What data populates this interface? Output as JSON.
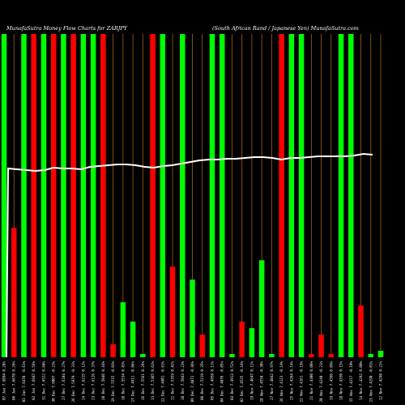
{
  "chart_data": {
    "type": "bar",
    "title_left": "MunafaSutra  Money Flow  Charts for ZARJPY",
    "title_right": "(South African Rand / Japanese Yen) MunafaSutra.com",
    "grid": true,
    "colors": {
      "background": "#000000",
      "up": "#00ff00",
      "down": "#ff0000",
      "grid": "#a0611a",
      "line": "#ffffff"
    },
    "ylim": [
      0,
      100
    ],
    "categories": [
      "07 Jan 7.6894 0.28%",
      "06 Jan 7.6678 0.26%",
      "03 Jan 7.6478 -0.61%",
      "02 Jan 7.6947 0.56%",
      "31 Dec 7.6522 0.68%",
      "30 Dec 7.6007 -0.23%",
      "27 Dec 7.6184 0.27%",
      "26 Dec 7.5979 -0.31%",
      "24 Dec 7.6215 0.11%",
      "23 Dec 7.6126 0.37%",
      "20 Dec 7.5846 0.44%",
      "19 Dec 7.5515 -0.03%",
      "18 Dec 7.5534 0.83%",
      "17 Dec 7.4911 -0.86%",
      "16 Dec 7.5561 0.26%",
      "13 Dec 7.5365 0.62%",
      "12 Dec 7.4901 -0.61%",
      "11 Dec 7.5359 0.42%",
      "10 Dec 7.5043 0.23%",
      "09 Dec 7.4872 -0.46%",
      "06 Dec 7.5219 0.35%",
      "05 Dec 7.4958 0.11%",
      "04 Dec 7.4876 -0.05%",
      "03 Dec 7.4913 0.52%",
      "02 Dec 7.4525 -0.16%",
      "29 Nov 7.4647 0.12%",
      "28 Nov 7.4558 -0.38%",
      "27 Nov 7.4842 0.97%",
      "26 Nov 7.4123 -0.19%",
      "25 Nov 7.4264 0.14%",
      "22 Nov 7.4161 -0.19%",
      "21 Nov 7.4300 0.08%",
      "20 Nov 7.4240 -0.21%",
      "19 Nov 7.4396 0.09%",
      "18 Nov 7.4330 0.15%",
      "15 Nov 7.4217 -0.10%",
      "14 Nov 7.4292 0.00%",
      "13 Nov 7.4290 -0.01%",
      "12 Nov 7.4298 0.22%"
    ],
    "values": [
      100,
      40,
      100,
      100,
      100,
      100,
      100,
      100,
      100,
      100,
      100,
      4,
      17,
      11,
      1,
      100,
      100,
      28,
      100,
      24,
      7,
      100,
      100,
      1,
      11,
      9,
      30,
      1,
      100,
      100,
      100,
      1,
      7,
      1,
      100,
      100,
      16,
      1,
      2
    ],
    "direction": [
      "up",
      "down",
      "up",
      "down",
      "up",
      "down",
      "up",
      "down",
      "up",
      "up",
      "down",
      "down",
      "up",
      "up",
      "up",
      "down",
      "up",
      "down",
      "up",
      "up",
      "down",
      "up",
      "up",
      "up",
      "down",
      "up",
      "up",
      "up",
      "down",
      "up",
      "up",
      "down",
      "down",
      "down",
      "up",
      "up",
      "down",
      "up",
      "up"
    ],
    "price_line": [
      208,
      209,
      210,
      211,
      210,
      207,
      208,
      208,
      209,
      206,
      205,
      204,
      203,
      203,
      204,
      206,
      207,
      205,
      204,
      202,
      200,
      198,
      197,
      197,
      196,
      196,
      195,
      194,
      194,
      195,
      197,
      195,
      195,
      194,
      193,
      193,
      193,
      193,
      192,
      190,
      191
    ]
  }
}
